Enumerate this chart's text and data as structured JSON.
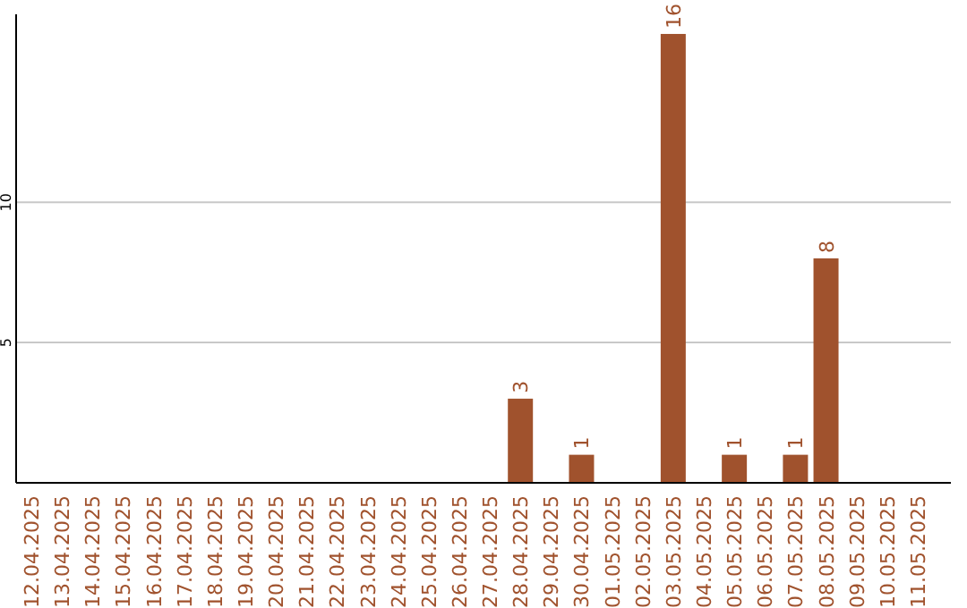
{
  "chart_data": {
    "type": "bar",
    "categories": [
      "12.04.2025",
      "13.04.2025",
      "14.04.2025",
      "15.04.2025",
      "16.04.2025",
      "17.04.2025",
      "18.04.2025",
      "19.04.2025",
      "20.04.2025",
      "21.04.2025",
      "22.04.2025",
      "23.04.2025",
      "24.04.2025",
      "25.04.2025",
      "26.04.2025",
      "27.04.2025",
      "28.04.2025",
      "29.04.2025",
      "30.04.2025",
      "01.05.2025",
      "02.05.2025",
      "03.05.2025",
      "04.05.2025",
      "05.05.2025",
      "06.05.2025",
      "07.05.2025",
      "08.05.2025",
      "09.05.2025",
      "10.05.2025",
      "11.05.2025"
    ],
    "values": [
      0,
      0,
      0,
      0,
      0,
      0,
      0,
      0,
      0,
      0,
      0,
      0,
      0,
      0,
      0,
      0,
      3,
      0,
      1,
      0,
      0,
      16,
      0,
      1,
      0,
      1,
      8,
      0,
      0,
      0
    ],
    "value_labels": [
      null,
      null,
      null,
      null,
      null,
      null,
      null,
      null,
      null,
      null,
      null,
      null,
      null,
      null,
      null,
      null,
      "3",
      null,
      "1",
      null,
      null,
      "16",
      null,
      "1",
      null,
      "1",
      "8",
      null,
      null,
      null
    ],
    "color": "#a0522d",
    "ylim": [
      0,
      16.7
    ],
    "yticks": [
      5,
      10
    ],
    "grid": "y"
  }
}
